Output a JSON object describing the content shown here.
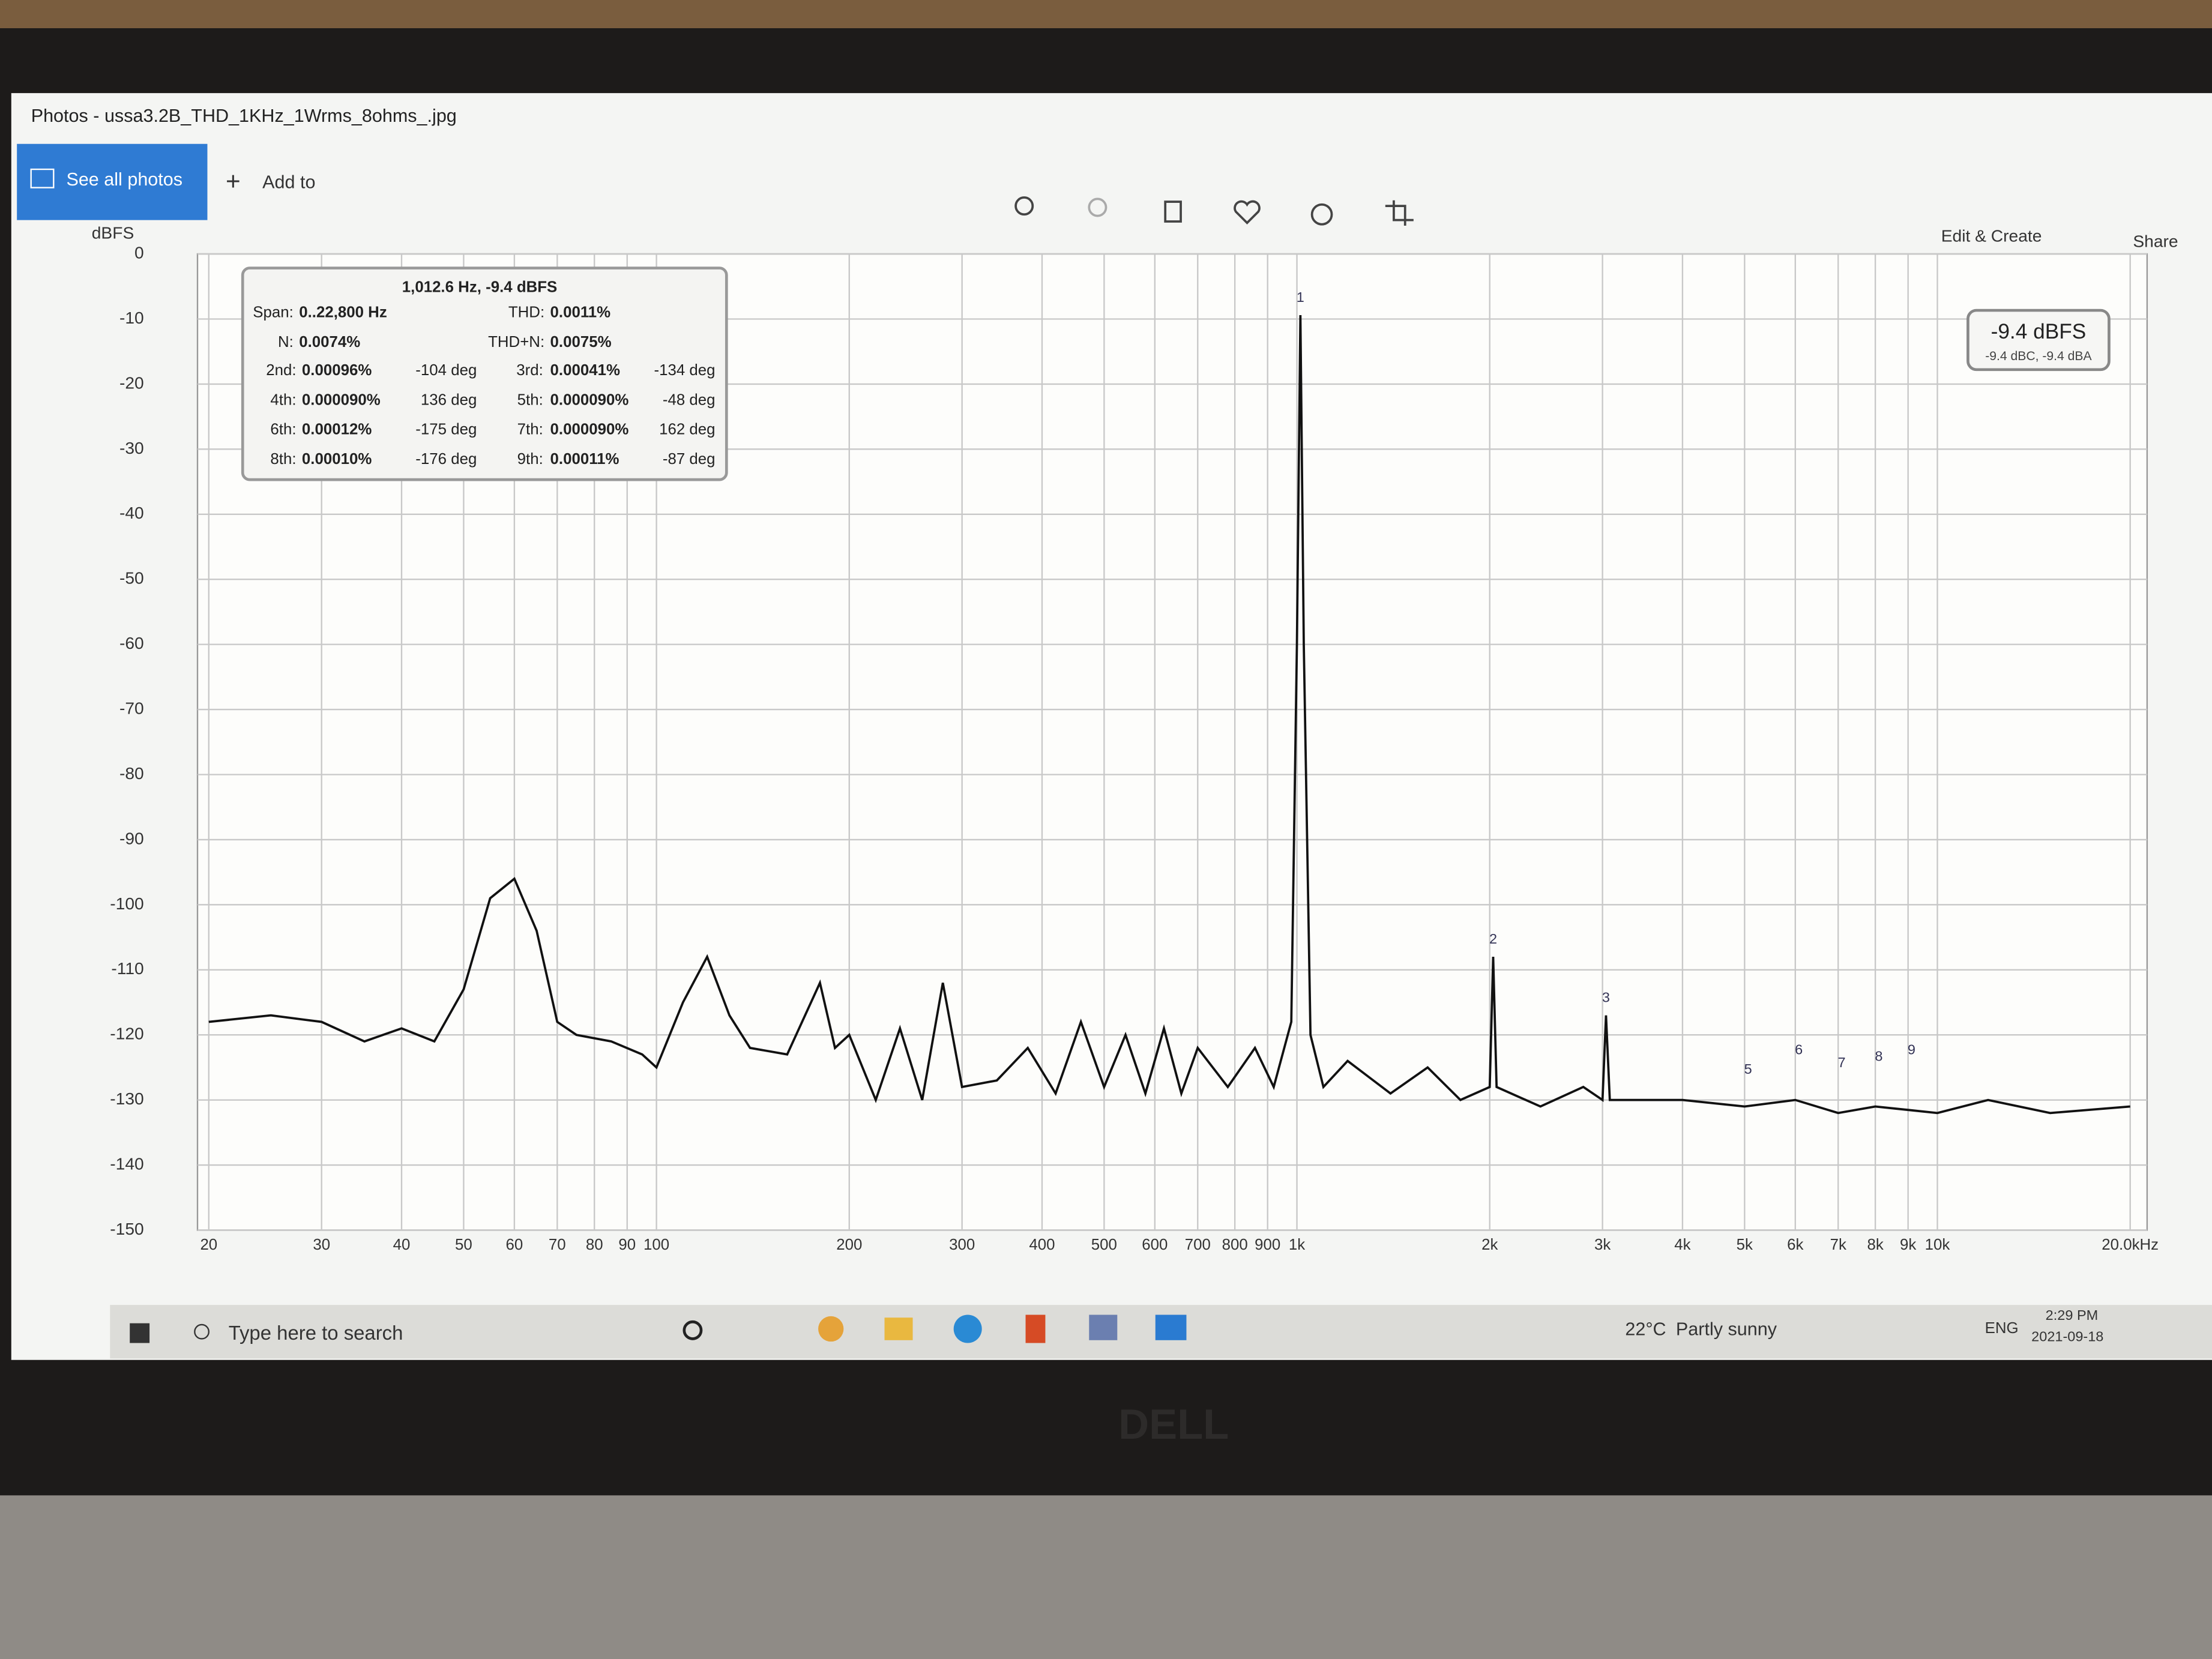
{
  "window": {
    "title": "Photos - ussa3.2B_THD_1KHz_1Wrms_8ohms_.jpg",
    "see_all_photos": "See all photos",
    "add_to": "Add to",
    "edit_create": "Edit & Create",
    "share": "Share"
  },
  "chart_data": {
    "type": "line",
    "y_label": "dBFS",
    "x_scale": "log",
    "grid": true,
    "xlim": [
      20,
      20000
    ],
    "ylim": [
      -150,
      0
    ],
    "yticks": [
      0,
      -10,
      -20,
      -30,
      -40,
      -50,
      -60,
      -70,
      -80,
      -90,
      -100,
      -110,
      -120,
      -130,
      -140,
      -150
    ],
    "xticks": [
      20,
      30,
      40,
      50,
      60,
      70,
      80,
      90,
      100,
      200,
      300,
      400,
      500,
      600,
      700,
      800,
      900,
      {
        "value": 1000,
        "label": "1k"
      },
      {
        "value": 2000,
        "label": "2k"
      },
      {
        "value": 3000,
        "label": "3k"
      },
      {
        "value": 4000,
        "label": "4k"
      },
      {
        "value": 5000,
        "label": "5k"
      },
      {
        "value": 6000,
        "label": "6k"
      },
      {
        "value": 7000,
        "label": "7k"
      },
      {
        "value": 8000,
        "label": "8k"
      },
      {
        "value": 9000,
        "label": "9k"
      },
      {
        "value": 10000,
        "label": "10k"
      },
      {
        "value": 20000,
        "label": "20.0kHz"
      }
    ],
    "series": [
      {
        "color": "#111111",
        "x": [
          20,
          25,
          30,
          35,
          40,
          45,
          50,
          55,
          60,
          65,
          70,
          75,
          85,
          95,
          100,
          110,
          120,
          130,
          140,
          160,
          180,
          190,
          200,
          220,
          240,
          260,
          280,
          300,
          340,
          380,
          420,
          460,
          500,
          540,
          580,
          620,
          660,
          700,
          780,
          860,
          920,
          980,
          1000,
          1012.6,
          1025,
          1050,
          1100,
          1200,
          1400,
          1600,
          1800,
          2000,
          2025,
          2050,
          2400,
          2800,
          3000,
          3038,
          3080,
          4000,
          5000,
          6000,
          7000,
          8000,
          10000,
          12000,
          15000,
          20000
        ],
        "values": [
          -118,
          -117,
          -118,
          -121,
          -119,
          -121,
          -113,
          -99,
          -96,
          -104,
          -118,
          -120,
          -121,
          -123,
          -125,
          -115,
          -108,
          -117,
          -122,
          -123,
          -112,
          -122,
          -120,
          -130,
          -119,
          -130,
          -112,
          -128,
          -127,
          -122,
          -129,
          -118,
          -128,
          -120,
          -129,
          -119,
          -129,
          -122,
          -128,
          -122,
          -128,
          -118,
          -60,
          -9.4,
          -60,
          -120,
          -128,
          -124,
          -129,
          -125,
          -130,
          -128,
          -108,
          -128,
          -131,
          -128,
          -130,
          -117,
          -130,
          -130,
          -131,
          -130,
          -132,
          -131,
          -132,
          -130,
          -132,
          -131
        ]
      }
    ],
    "harmonics": [
      {
        "label": "1",
        "x": 1012.6,
        "value": -9.4
      },
      {
        "label": "2",
        "x": 2025,
        "value": -108
      },
      {
        "label": "3",
        "x": 3038,
        "value": -117
      },
      {
        "label": "5",
        "x": 5063,
        "value": -128
      },
      {
        "label": "6",
        "x": 6076,
        "value": -125
      },
      {
        "label": "7",
        "x": 7088,
        "value": -127
      },
      {
        "label": "8",
        "x": 8101,
        "value": -126
      },
      {
        "label": "9",
        "x": 9113,
        "value": -125
      }
    ],
    "info_box": {
      "header": "1,012.6 Hz, -9.4 dBFS",
      "rows": [
        [
          "Span:",
          "0..22,800 Hz",
          "THD:",
          "0.0011%"
        ],
        [
          "N:",
          "0.0074%",
          "THD+N:",
          "0.0075%"
        ],
        [
          "2nd:",
          "0.00096%",
          "-104 deg",
          "3rd:",
          "0.00041%",
          "-134 deg"
        ],
        [
          "4th:",
          "0.000090%",
          "136 deg",
          "5th:",
          "0.000090%",
          "-48 deg"
        ],
        [
          "6th:",
          "0.00012%",
          "-175 deg",
          "7th:",
          "0.000090%",
          "162 deg"
        ],
        [
          "8th:",
          "0.00010%",
          "-176 deg",
          "9th:",
          "0.00011%",
          "-87 deg"
        ]
      ]
    },
    "level_box": {
      "main": "-9.4 dBFS",
      "sub": "-9.4 dBC, -9.4 dBA"
    }
  },
  "taskbar": {
    "search": "Type here to search",
    "temperature": "22°C",
    "weather": "Partly sunny",
    "language": "ENG",
    "time": "2:29 PM",
    "date": "2021-09-18"
  },
  "bezel_logo": "DELL"
}
